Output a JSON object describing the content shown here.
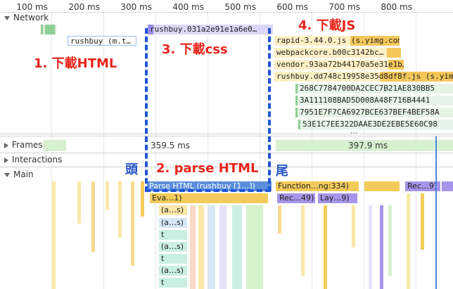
{
  "ruler": {
    "ticks": [
      "100 ms",
      "200 ms",
      "300 ms",
      "400 ms",
      "500 ms",
      "600 ms",
      "700 ms",
      "800 ms"
    ]
  },
  "sections": {
    "network": "Network",
    "frames": "Frames",
    "interactions": "Interactions",
    "main": "Main"
  },
  "network_requests": {
    "html": "rushbuy (m.t…",
    "css": "rushbuy.031a2e91e1a6e0…",
    "js": [
      "rapid-3.44.0.js (s.yimg.com)",
      "webpackcore.b00c3142bc…",
      "vendor.93aa72b44170a5e31e1b…",
      "rushbuy.dd748c19958e35d8df8f.js (s.yimg"
    ],
    "images": [
      "268C7784700DA2CEC7B21AE830BB5",
      "3A111108BAD5D008A48F716B4441",
      "7951E7F7CA6927BCE637BEF4BEF58A",
      "53E1C7EE322DAAE3DE2EBE5E60C98"
    ]
  },
  "frames": {
    "d1": "359.5 ms",
    "d2": "397.9 ms"
  },
  "annotations": {
    "step1": "1. 下載HTML",
    "step2": "2. parse HTML",
    "step3": "3. 下載css",
    "step4": "4. 下載JS",
    "head": "頭",
    "tail": "尾"
  },
  "main_thread": {
    "parse": "Parse HTML (rushbuy [1…])",
    "function": "Function…ng:334)",
    "recalc1": "Rec…9)",
    "recalc2": "Rec…49)",
    "layout": "Lay…9)",
    "eval": "Eva…1)",
    "sub": [
      "(a…s)",
      "(a…s)",
      "t",
      "(a…s)",
      "t",
      "(a…s)",
      "t"
    ]
  },
  "colors": {
    "annotation_red": "#e8251c",
    "annotation_blue": "#2956c9",
    "dashed_box": "#1f55d6",
    "parse_html": "#5b8fdc",
    "scripting": "#f3cb5b",
    "rendering": "#a695e9"
  }
}
